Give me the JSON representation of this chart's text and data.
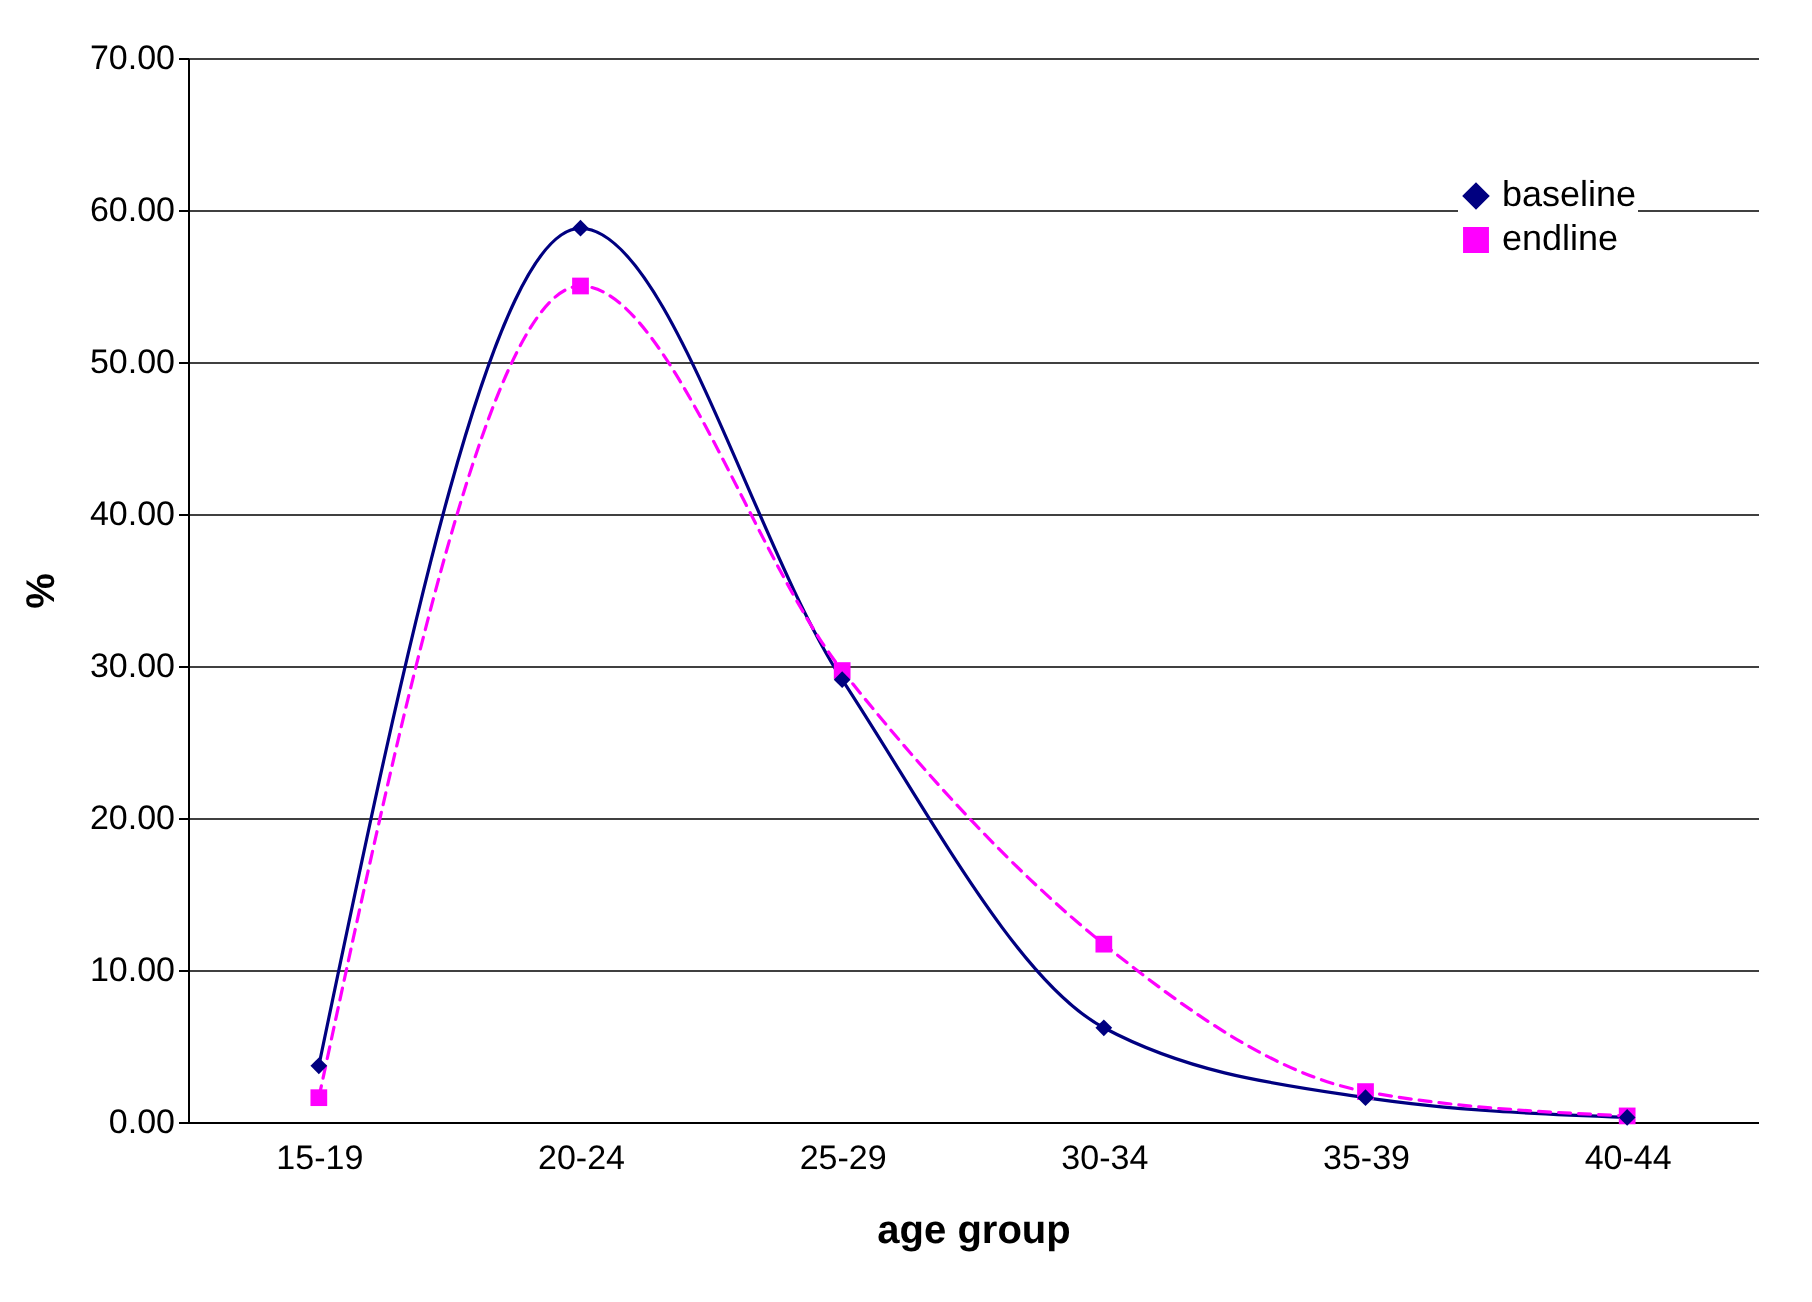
{
  "chart_data": {
    "type": "line",
    "xlabel": "age group",
    "ylabel": "%",
    "categories": [
      "15-19",
      "20-24",
      "25-29",
      "30-34",
      "35-39",
      "40-44"
    ],
    "series": [
      {
        "name": "baseline",
        "color": "#000080",
        "values": [
          3.7,
          58.8,
          29.1,
          6.2,
          1.6,
          0.3
        ],
        "marker": "diamond",
        "line_style": "solid"
      },
      {
        "name": "endline",
        "color": "#ff00ff",
        "values": [
          1.6,
          55.0,
          29.7,
          11.7,
          2.0,
          0.4
        ],
        "marker": "square",
        "line_style": "dashed"
      }
    ],
    "ylim": [
      0,
      70
    ],
    "yticks": [
      {
        "value": 0,
        "label": "0.00"
      },
      {
        "value": 10,
        "label": "10.00"
      },
      {
        "value": 20,
        "label": "20.00"
      },
      {
        "value": 30,
        "label": "30.00"
      },
      {
        "value": 40,
        "label": "40.00"
      },
      {
        "value": 50,
        "label": "50.00"
      },
      {
        "value": 60,
        "label": "60.00"
      },
      {
        "value": 70,
        "label": "70.00"
      }
    ],
    "grid": "y",
    "legend": "top right"
  }
}
